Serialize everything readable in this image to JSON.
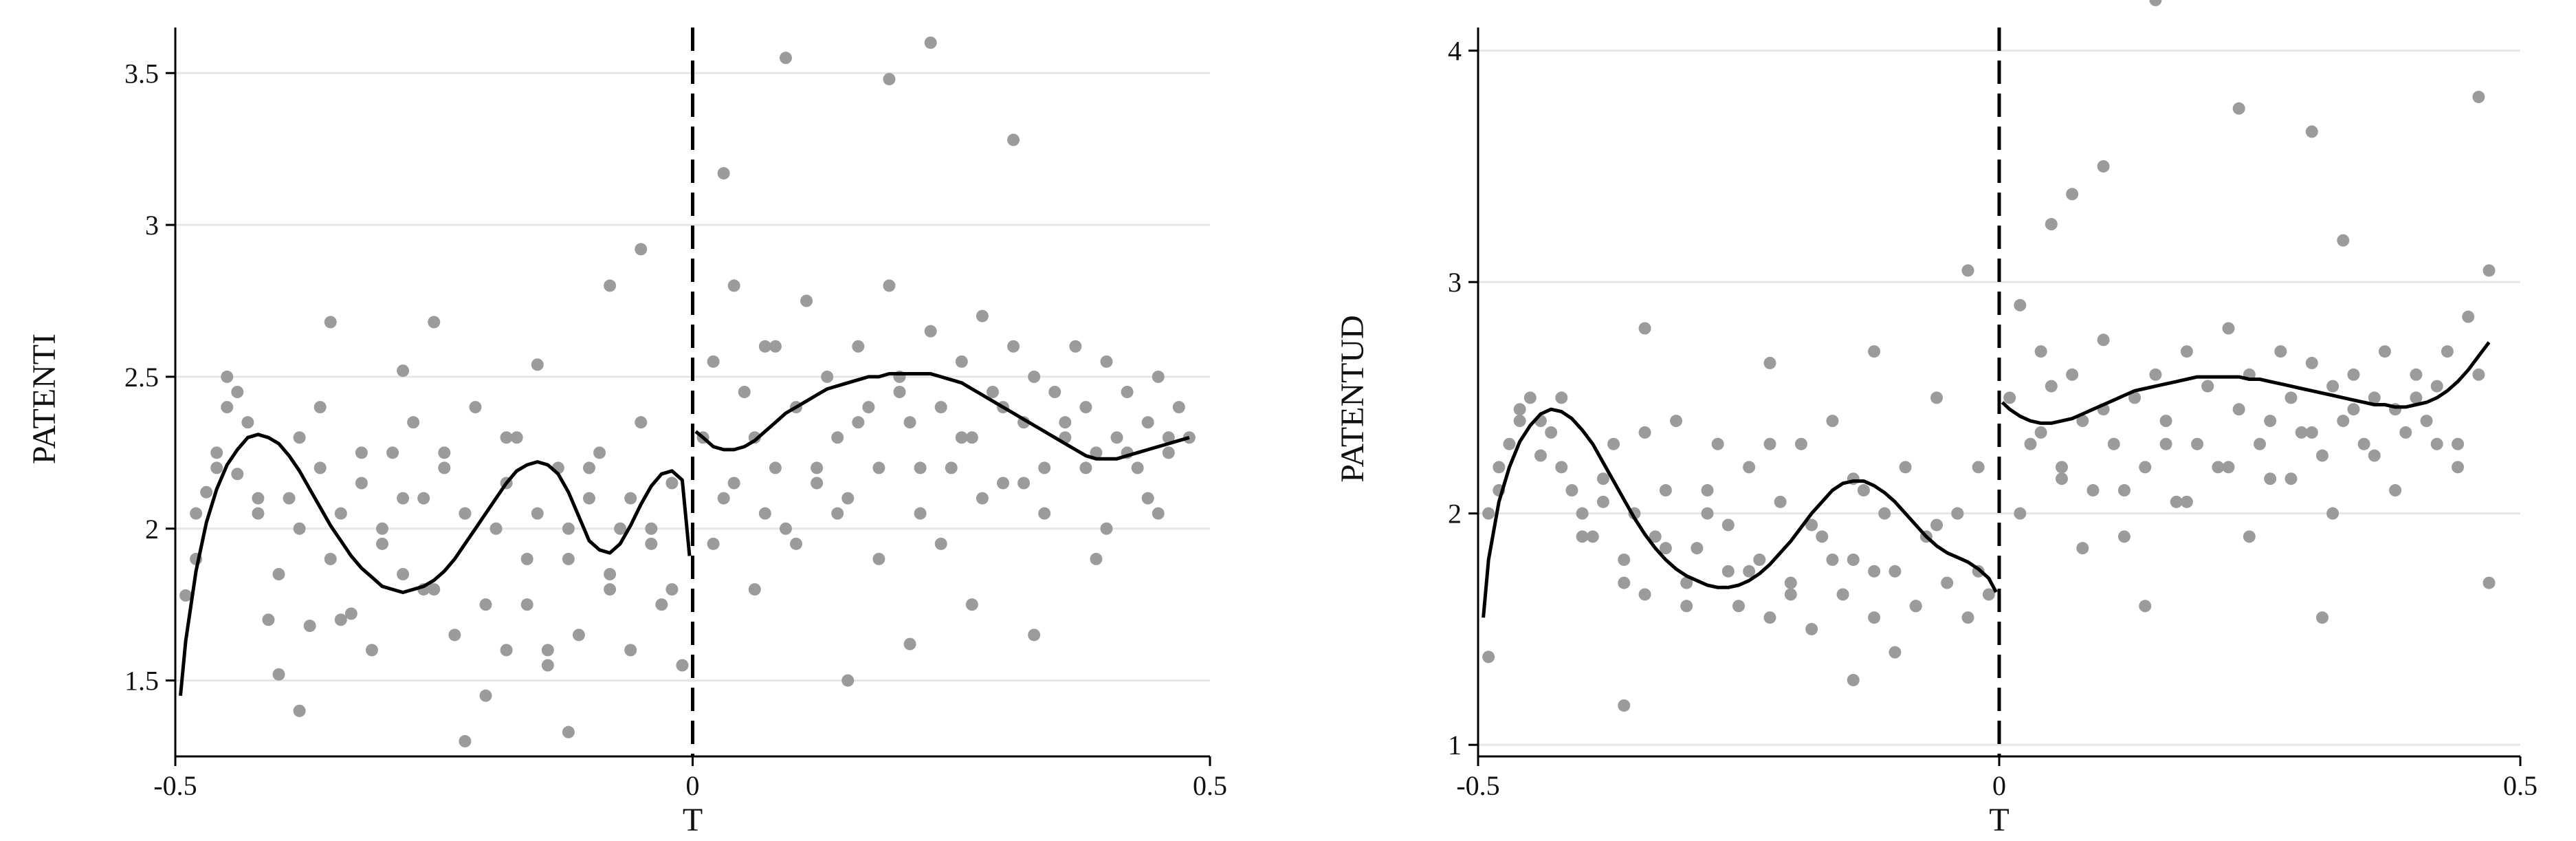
{
  "chart_data": [
    {
      "type": "scatter",
      "title": "",
      "xlabel": "T",
      "ylabel": "PATENTI",
      "xlim": [
        -0.5,
        0.5
      ],
      "ylim": [
        1.25,
        3.65
      ],
      "xticks": [
        -0.5,
        0,
        0.5
      ],
      "xtick_labels": [
        "-0.5",
        "0",
        "0.5"
      ],
      "yticks": [
        1.5,
        2,
        2.5,
        3,
        3.5
      ],
      "ytick_labels": [
        "1.5",
        "2",
        "2.5",
        "3",
        "3.5"
      ],
      "grid": "horizontal",
      "cutoff": 0,
      "colors": {
        "points": "#9b9b9b",
        "fit": "#000000",
        "grid": "#e6e6e6"
      },
      "points_x": [
        -0.49,
        -0.48,
        -0.47,
        -0.46,
        -0.45,
        -0.44,
        -0.43,
        -0.42,
        -0.41,
        -0.4,
        -0.39,
        -0.38,
        -0.37,
        -0.36,
        -0.35,
        -0.34,
        -0.33,
        -0.32,
        -0.31,
        -0.3,
        -0.29,
        -0.28,
        -0.27,
        -0.26,
        -0.25,
        -0.24,
        -0.23,
        -0.22,
        -0.21,
        -0.2,
        -0.19,
        -0.18,
        -0.17,
        -0.16,
        -0.15,
        -0.14,
        -0.13,
        -0.12,
        -0.11,
        -0.1,
        -0.09,
        -0.08,
        -0.07,
        -0.06,
        -0.05,
        -0.04,
        -0.03,
        -0.02,
        -0.01,
        -0.48,
        -0.46,
        -0.44,
        -0.42,
        -0.4,
        -0.38,
        -0.36,
        -0.34,
        -0.32,
        -0.3,
        -0.28,
        -0.26,
        -0.24,
        -0.22,
        -0.2,
        -0.18,
        -0.16,
        -0.14,
        -0.12,
        -0.1,
        -0.08,
        -0.06,
        -0.04,
        -0.02,
        -0.45,
        -0.35,
        -0.25,
        -0.15,
        -0.05,
        -0.28,
        -0.18,
        -0.08,
        -0.38,
        -0.12,
        -0.22,
        0.01,
        0.02,
        0.03,
        0.04,
        0.05,
        0.06,
        0.07,
        0.08,
        0.09,
        0.1,
        0.11,
        0.12,
        0.13,
        0.14,
        0.15,
        0.16,
        0.17,
        0.18,
        0.19,
        0.2,
        0.21,
        0.22,
        0.23,
        0.24,
        0.25,
        0.26,
        0.27,
        0.28,
        0.29,
        0.3,
        0.31,
        0.32,
        0.33,
        0.34,
        0.35,
        0.36,
        0.37,
        0.38,
        0.39,
        0.4,
        0.41,
        0.42,
        0.43,
        0.44,
        0.45,
        0.46,
        0.47,
        0.48,
        0.02,
        0.04,
        0.06,
        0.08,
        0.1,
        0.12,
        0.14,
        0.16,
        0.18,
        0.2,
        0.22,
        0.24,
        0.26,
        0.28,
        0.3,
        0.32,
        0.34,
        0.36,
        0.38,
        0.4,
        0.42,
        0.44,
        0.46,
        0.03,
        0.09,
        0.15,
        0.21,
        0.27,
        0.33,
        0.39,
        0.45,
        0.07,
        0.19,
        0.23,
        0.31
      ],
      "points_y": [
        1.78,
        2.05,
        2.12,
        2.25,
        2.4,
        2.18,
        2.35,
        2.05,
        1.7,
        1.52,
        2.1,
        2.3,
        1.68,
        2.2,
        1.9,
        2.05,
        1.72,
        2.15,
        1.6,
        2.0,
        2.25,
        1.85,
        2.35,
        2.1,
        1.8,
        2.2,
        1.65,
        2.05,
        2.4,
        1.45,
        2.0,
        1.6,
        2.3,
        1.75,
        2.05,
        1.55,
        2.2,
        1.9,
        1.65,
        2.1,
        2.25,
        1.8,
        2.0,
        1.6,
        2.35,
        1.95,
        1.75,
        2.15,
        1.55,
        1.9,
        2.2,
        2.45,
        2.1,
        1.85,
        2.0,
        2.4,
        1.7,
        2.25,
        1.95,
        2.1,
        1.8,
        2.25,
        2.05,
        1.75,
        2.15,
        1.9,
        1.6,
        2.0,
        2.2,
        1.85,
        2.1,
        2.0,
        1.8,
        2.5,
        2.68,
        2.68,
        2.54,
        2.92,
        2.52,
        2.3,
        2.8,
        1.4,
        1.33,
        1.3,
        2.3,
        2.55,
        2.1,
        2.8,
        2.45,
        2.3,
        2.6,
        2.2,
        2.0,
        2.4,
        2.75,
        2.15,
        2.5,
        2.3,
        2.1,
        2.6,
        2.4,
        2.2,
        2.8,
        2.5,
        2.35,
        2.05,
        2.65,
        2.4,
        2.2,
        2.55,
        2.3,
        2.7,
        2.45,
        2.15,
        2.6,
        2.35,
        2.5,
        2.2,
        2.45,
        2.3,
        2.6,
        2.4,
        2.25,
        2.55,
        2.3,
        2.45,
        2.2,
        2.35,
        2.5,
        2.25,
        2.4,
        2.3,
        1.95,
        2.15,
        1.8,
        2.6,
        1.95,
        2.2,
        2.05,
        2.35,
        1.9,
        2.45,
        2.2,
        1.95,
        2.3,
        2.1,
        2.4,
        2.15,
        2.05,
        2.35,
        2.2,
        2.0,
        2.25,
        2.1,
        2.3,
        3.17,
        3.55,
        1.5,
        1.62,
        1.75,
        1.65,
        1.9,
        2.05,
        2.05,
        3.48,
        3.6,
        3.28
      ],
      "fit_left_x": [
        -0.495,
        -0.49,
        -0.48,
        -0.47,
        -0.46,
        -0.45,
        -0.44,
        -0.43,
        -0.42,
        -0.41,
        -0.4,
        -0.39,
        -0.38,
        -0.37,
        -0.36,
        -0.35,
        -0.34,
        -0.33,
        -0.32,
        -0.31,
        -0.3,
        -0.29,
        -0.28,
        -0.27,
        -0.26,
        -0.25,
        -0.24,
        -0.23,
        -0.22,
        -0.21,
        -0.2,
        -0.19,
        -0.18,
        -0.17,
        -0.16,
        -0.15,
        -0.14,
        -0.13,
        -0.12,
        -0.11,
        -0.1,
        -0.09,
        -0.08,
        -0.07,
        -0.06,
        -0.05,
        -0.04,
        -0.03,
        -0.02,
        -0.01,
        -0.003
      ],
      "fit_left_y": [
        1.45,
        1.63,
        1.86,
        2.02,
        2.13,
        2.21,
        2.26,
        2.3,
        2.31,
        2.3,
        2.28,
        2.24,
        2.19,
        2.13,
        2.07,
        2.01,
        1.96,
        1.91,
        1.87,
        1.84,
        1.81,
        1.8,
        1.79,
        1.8,
        1.81,
        1.83,
        1.86,
        1.9,
        1.95,
        2.0,
        2.05,
        2.1,
        2.15,
        2.19,
        2.21,
        2.22,
        2.21,
        2.18,
        2.12,
        2.04,
        1.96,
        1.93,
        1.92,
        1.95,
        2.01,
        2.08,
        2.14,
        2.18,
        2.19,
        2.16,
        1.91
      ],
      "fit_right_x": [
        0.003,
        0.01,
        0.02,
        0.03,
        0.04,
        0.05,
        0.06,
        0.07,
        0.08,
        0.09,
        0.1,
        0.11,
        0.12,
        0.13,
        0.14,
        0.15,
        0.16,
        0.17,
        0.18,
        0.19,
        0.2,
        0.21,
        0.22,
        0.23,
        0.24,
        0.25,
        0.26,
        0.27,
        0.28,
        0.29,
        0.3,
        0.31,
        0.32,
        0.33,
        0.34,
        0.35,
        0.36,
        0.37,
        0.38,
        0.39,
        0.4,
        0.41,
        0.42,
        0.43,
        0.44,
        0.45,
        0.46,
        0.47,
        0.48
      ],
      "fit_right_y": [
        2.32,
        2.3,
        2.27,
        2.26,
        2.26,
        2.27,
        2.29,
        2.32,
        2.35,
        2.38,
        2.4,
        2.42,
        2.44,
        2.46,
        2.47,
        2.48,
        2.49,
        2.5,
        2.5,
        2.51,
        2.51,
        2.51,
        2.51,
        2.51,
        2.5,
        2.49,
        2.48,
        2.46,
        2.44,
        2.42,
        2.4,
        2.38,
        2.36,
        2.34,
        2.32,
        2.3,
        2.28,
        2.26,
        2.24,
        2.23,
        2.23,
        2.23,
        2.24,
        2.25,
        2.26,
        2.27,
        2.28,
        2.29,
        2.3
      ]
    },
    {
      "type": "scatter",
      "title": "",
      "xlabel": "T",
      "ylabel": "PATENTUD",
      "xlim": [
        -0.5,
        0.5
      ],
      "ylim": [
        0.95,
        4.1
      ],
      "xticks": [
        -0.5,
        0,
        0.5
      ],
      "xtick_labels": [
        "-0.5",
        "0",
        "0.5"
      ],
      "yticks": [
        1,
        2,
        3,
        4
      ],
      "ytick_labels": [
        "1",
        "2",
        "3",
        "4"
      ],
      "grid": "horizontal",
      "cutoff": 0,
      "colors": {
        "points": "#9b9b9b",
        "fit": "#000000",
        "grid": "#e6e6e6"
      },
      "points_x": [
        -0.49,
        -0.48,
        -0.47,
        -0.46,
        -0.45,
        -0.44,
        -0.43,
        -0.42,
        -0.41,
        -0.4,
        -0.39,
        -0.38,
        -0.37,
        -0.36,
        -0.35,
        -0.34,
        -0.33,
        -0.32,
        -0.31,
        -0.3,
        -0.29,
        -0.28,
        -0.27,
        -0.26,
        -0.25,
        -0.24,
        -0.23,
        -0.22,
        -0.21,
        -0.2,
        -0.19,
        -0.18,
        -0.17,
        -0.16,
        -0.15,
        -0.14,
        -0.13,
        -0.12,
        -0.11,
        -0.1,
        -0.09,
        -0.08,
        -0.07,
        -0.06,
        -0.05,
        -0.04,
        -0.03,
        -0.02,
        -0.01,
        -0.48,
        -0.46,
        -0.44,
        -0.42,
        -0.4,
        -0.38,
        -0.36,
        -0.34,
        -0.32,
        -0.3,
        -0.28,
        -0.26,
        -0.24,
        -0.22,
        -0.2,
        -0.18,
        -0.16,
        -0.14,
        -0.12,
        -0.1,
        -0.08,
        -0.06,
        -0.04,
        -0.02,
        -0.49,
        -0.34,
        -0.22,
        -0.12,
        -0.03,
        -0.36,
        -0.14,
        0.01,
        0.02,
        0.03,
        0.04,
        0.05,
        0.06,
        0.07,
        0.08,
        0.09,
        0.1,
        0.11,
        0.12,
        0.13,
        0.14,
        0.15,
        0.16,
        0.17,
        0.18,
        0.19,
        0.2,
        0.21,
        0.22,
        0.23,
        0.24,
        0.25,
        0.26,
        0.27,
        0.28,
        0.29,
        0.3,
        0.31,
        0.32,
        0.33,
        0.34,
        0.35,
        0.36,
        0.37,
        0.38,
        0.39,
        0.4,
        0.41,
        0.42,
        0.43,
        0.44,
        0.45,
        0.46,
        0.47,
        0.02,
        0.04,
        0.06,
        0.08,
        0.1,
        0.12,
        0.14,
        0.16,
        0.18,
        0.2,
        0.22,
        0.24,
        0.26,
        0.28,
        0.3,
        0.32,
        0.34,
        0.36,
        0.38,
        0.4,
        0.42,
        0.44,
        0.46,
        0.07,
        0.1,
        0.23,
        0.3,
        0.31,
        0.33,
        0.47,
        0.05,
        0.15
      ],
      "points_y": [
        2.0,
        2.2,
        2.3,
        2.45,
        2.5,
        2.4,
        2.35,
        2.2,
        2.1,
        2.0,
        1.9,
        2.15,
        2.3,
        1.8,
        2.0,
        1.65,
        1.9,
        2.1,
        2.4,
        1.7,
        1.85,
        2.0,
        2.3,
        1.75,
        1.6,
        2.2,
        1.8,
        1.55,
        2.05,
        1.7,
        2.3,
        1.5,
        1.9,
        2.4,
        1.65,
        1.8,
        2.1,
        1.55,
        2.0,
        1.75,
        2.2,
        1.6,
        1.9,
        2.5,
        1.7,
        2.0,
        1.55,
        2.2,
        1.65,
        2.1,
        2.4,
        2.25,
        2.5,
        1.9,
        2.05,
        1.7,
        2.35,
        1.85,
        1.6,
        2.1,
        1.95,
        1.75,
        2.3,
        1.65,
        1.95,
        1.8,
        2.15,
        1.75,
        1.4,
        1.6,
        1.95,
        2.0,
        1.75,
        1.38,
        2.8,
        2.65,
        2.7,
        3.05,
        1.17,
        1.28,
        2.5,
        2.9,
        2.3,
        2.7,
        2.55,
        2.2,
        2.6,
        2.4,
        2.1,
        2.75,
        2.3,
        1.9,
        2.5,
        2.2,
        2.6,
        2.4,
        2.05,
        2.7,
        2.3,
        2.55,
        2.2,
        2.8,
        2.45,
        2.6,
        2.3,
        2.15,
        2.7,
        2.5,
        2.35,
        2.65,
        2.25,
        2.55,
        2.4,
        2.6,
        2.3,
        2.5,
        2.7,
        2.45,
        2.35,
        2.6,
        2.4,
        2.55,
        2.7,
        2.3,
        2.85,
        2.6,
        1.7,
        2.0,
        2.35,
        2.15,
        1.85,
        2.45,
        2.1,
        1.6,
        2.3,
        2.05,
        2.55,
        2.2,
        1.9,
        2.4,
        2.15,
        2.35,
        2.0,
        2.45,
        2.25,
        2.1,
        2.5,
        2.3,
        2.2,
        3.8,
        3.38,
        3.5,
        3.75,
        3.65,
        1.55,
        3.18,
        3.05,
        3.25
      ],
      "fit_left_x": [
        -0.495,
        -0.49,
        -0.48,
        -0.47,
        -0.46,
        -0.45,
        -0.44,
        -0.43,
        -0.42,
        -0.41,
        -0.4,
        -0.39,
        -0.38,
        -0.37,
        -0.36,
        -0.35,
        -0.34,
        -0.33,
        -0.32,
        -0.31,
        -0.3,
        -0.29,
        -0.28,
        -0.27,
        -0.26,
        -0.25,
        -0.24,
        -0.23,
        -0.22,
        -0.21,
        -0.2,
        -0.19,
        -0.18,
        -0.17,
        -0.16,
        -0.15,
        -0.14,
        -0.13,
        -0.12,
        -0.11,
        -0.1,
        -0.09,
        -0.08,
        -0.07,
        -0.06,
        -0.05,
        -0.04,
        -0.03,
        -0.02,
        -0.01,
        -0.003
      ],
      "fit_left_y": [
        1.55,
        1.8,
        2.05,
        2.2,
        2.31,
        2.38,
        2.43,
        2.45,
        2.44,
        2.41,
        2.36,
        2.3,
        2.22,
        2.14,
        2.06,
        1.98,
        1.91,
        1.85,
        1.8,
        1.76,
        1.73,
        1.71,
        1.69,
        1.68,
        1.68,
        1.69,
        1.71,
        1.74,
        1.78,
        1.83,
        1.88,
        1.94,
        2.0,
        2.05,
        2.1,
        2.13,
        2.14,
        2.14,
        2.12,
        2.09,
        2.05,
        2.0,
        1.95,
        1.9,
        1.86,
        1.83,
        1.81,
        1.79,
        1.76,
        1.72,
        1.66
      ],
      "fit_right_x": [
        0.003,
        0.01,
        0.02,
        0.03,
        0.04,
        0.05,
        0.06,
        0.07,
        0.08,
        0.09,
        0.1,
        0.11,
        0.12,
        0.13,
        0.14,
        0.15,
        0.16,
        0.17,
        0.18,
        0.19,
        0.2,
        0.21,
        0.22,
        0.23,
        0.24,
        0.25,
        0.26,
        0.27,
        0.28,
        0.29,
        0.3,
        0.31,
        0.32,
        0.33,
        0.34,
        0.35,
        0.36,
        0.37,
        0.38,
        0.39,
        0.4,
        0.41,
        0.42,
        0.43,
        0.44,
        0.45,
        0.46,
        0.47
      ],
      "fit_right_y": [
        2.48,
        2.45,
        2.42,
        2.4,
        2.39,
        2.39,
        2.4,
        2.41,
        2.43,
        2.45,
        2.47,
        2.49,
        2.51,
        2.53,
        2.54,
        2.55,
        2.56,
        2.57,
        2.58,
        2.59,
        2.59,
        2.59,
        2.59,
        2.59,
        2.58,
        2.58,
        2.57,
        2.56,
        2.55,
        2.54,
        2.53,
        2.52,
        2.51,
        2.5,
        2.49,
        2.48,
        2.47,
        2.47,
        2.46,
        2.46,
        2.47,
        2.48,
        2.5,
        2.53,
        2.57,
        2.62,
        2.68,
        2.74
      ]
    }
  ]
}
